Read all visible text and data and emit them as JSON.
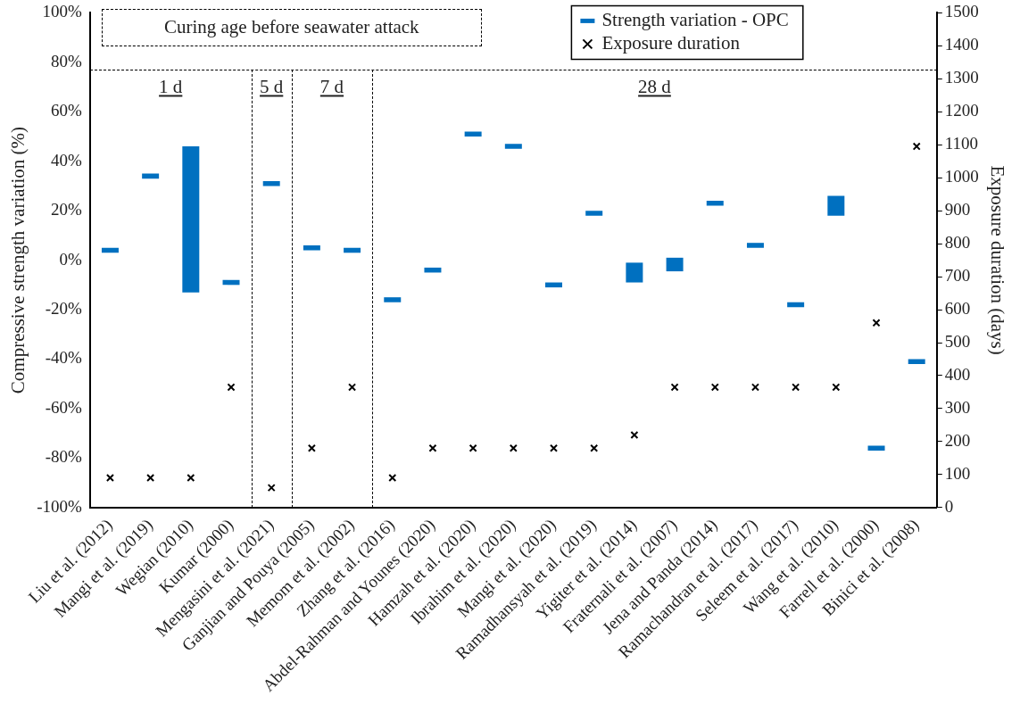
{
  "chart_data": {
    "type": "bar",
    "categories": [
      "Liu et al. (2012)",
      "Mangi et al. (2019)",
      "Wegian (2010)",
      "Kumar (2000)",
      "Mengasini et al. (2021)",
      "Ganjian and Pouya (2005)",
      "Memom et al. (2002)",
      "Zhang et al. (2016)",
      "Abdel-Rahman and Younes (2020)",
      "Hamzah et al. (2020)",
      "Ibrahim et al. (2020)",
      "Mangi et al. (2020)",
      "Ramadhansyah et al. (2019)",
      "Yigiter et al. (2014)",
      "Fraternali et al. (2007)",
      "Jena and Panda (2014)",
      "Ramachandran et al. (2017)",
      "Seleem et al. (2017)",
      "Wang et al. (2010)",
      "Farrell et al. (2000)",
      "Binici et al. (2008)"
    ],
    "series": [
      {
        "name": "Strength variation - OPC",
        "color": "#0070c0",
        "base": [
          3,
          33,
          -13,
          -10,
          30,
          4,
          3,
          -17,
          -5,
          50,
          45,
          -11,
          18,
          -9,
          -4.5,
          22,
          5,
          -19,
          18,
          -77,
          -42
        ],
        "values": [
          2,
          2,
          59,
          2,
          2,
          2,
          2,
          2,
          2,
          2,
          2,
          2,
          2,
          8,
          5.5,
          2,
          2,
          2,
          8,
          2,
          2
        ]
      },
      {
        "name": "Exposure duration",
        "type": "scatter",
        "axis": "y2",
        "color": "#000000",
        "marker": "cross",
        "x": [
          "Liu et al. (2012)",
          "Mangi et al. (2019)",
          "Wegian (2010)",
          "Kumar (2000)",
          "Mengasini et al. (2021)",
          "Ganjian and Pouya (2005)",
          "Memom et al. (2002)",
          "Zhang et al. (2016)",
          "Abdel-Rahman and Younes (2020)",
          "Hamzah et al. (2020)",
          "Ibrahim et al. (2020)",
          "Mangi et al. (2020)",
          "Ramadhansyah et al. (2019)",
          "Yigiter et al. (2014)",
          "Fraternali et al. (2007)",
          "Jena and Panda (2014)",
          "Ramachandran et al. (2017)",
          "Seleem et al. (2017)",
          "Wang et al. (2010)",
          "Farrell et al. (2000)",
          "Binici et al. (2008)"
        ],
        "values": [
          90,
          90,
          90,
          365,
          60,
          180,
          365,
          90,
          180,
          180,
          180,
          180,
          180,
          220,
          365,
          365,
          365,
          365,
          365,
          560,
          1095
        ]
      }
    ],
    "ylabel": "Compressive strength variation (%)",
    "y2label": "Exposure duration (days)",
    "ylim": [
      -100,
      100
    ],
    "yticks": [
      {
        "value": -100,
        "label": "-100%"
      },
      {
        "value": -80,
        "label": "-80%"
      },
      {
        "value": -60,
        "label": "-60%"
      },
      {
        "value": -40,
        "label": "-40%"
      },
      {
        "value": -20,
        "label": "-20%"
      },
      {
        "value": 0,
        "label": "0%"
      },
      {
        "value": 20,
        "label": "20%"
      },
      {
        "value": 40,
        "label": "40%"
      },
      {
        "value": 60,
        "label": "60%"
      },
      {
        "value": 80,
        "label": "80%"
      },
      {
        "value": 100,
        "label": "100%"
      }
    ],
    "y2lim": [
      0,
      1500
    ],
    "y2ticks": [
      0,
      100,
      200,
      300,
      400,
      500,
      600,
      700,
      800,
      900,
      1000,
      1100,
      1200,
      1300,
      1400,
      1500
    ],
    "annotations": [
      "Curing age before seawater attack",
      "1 d",
      "5 d",
      "7 d",
      "28 d"
    ],
    "legend": "top right",
    "grid": false
  }
}
